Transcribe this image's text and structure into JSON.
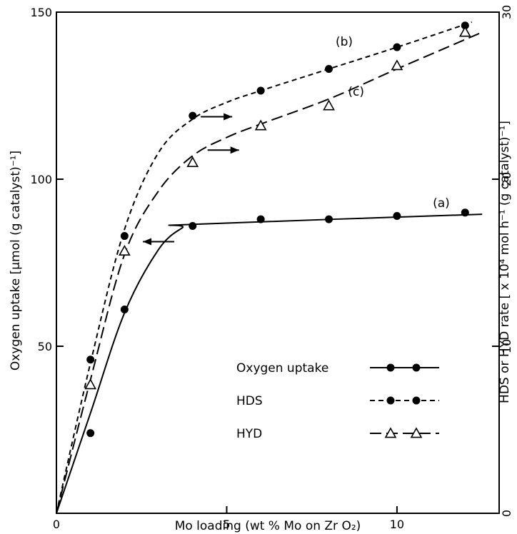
{
  "chart_data": {
    "type": "line",
    "title": "",
    "xlabel": "Mo loading (wt % Mo on Zr O₂)",
    "ylabel_left": "Oxygen uptake [µmol (g catalyst)⁻¹]",
    "ylabel_right": "HDS or HYD rate [ x 10⁴ mol h⁻¹ (g catalyst)⁻¹]",
    "xlim": [
      0,
      13
    ],
    "ylim_left": [
      0,
      150
    ],
    "ylim_right": [
      0,
      30
    ],
    "x_ticks": [
      {
        "value": 0,
        "label": "0"
      },
      {
        "value": 5,
        "label": "5"
      },
      {
        "value": 10,
        "label": "10"
      }
    ],
    "y_left_ticks": [
      {
        "value": 0,
        "label": ""
      },
      {
        "value": 50,
        "label": "50"
      },
      {
        "value": 100,
        "label": "100"
      },
      {
        "value": 150,
        "label": "150"
      }
    ],
    "y_right_ticks": [
      {
        "value": 0,
        "label": "0"
      },
      {
        "value": 10,
        "label": "10"
      },
      {
        "value": 20,
        "label": "20"
      },
      {
        "value": 30,
        "label": "30"
      }
    ],
    "grid": false,
    "series": [
      {
        "name": "Oxygen uptake",
        "label": "(a)",
        "axis": "left",
        "line_style": "solid",
        "marker": "filled-circle",
        "x": [
          1,
          2,
          4,
          6,
          8,
          10,
          12
        ],
        "y": [
          24,
          61,
          86,
          88,
          88,
          89,
          90
        ],
        "curve_x": [
          0,
          1,
          2,
          3,
          3.7,
          4,
          12.5
        ],
        "curve_y": [
          0,
          30,
          60,
          79,
          85.5,
          86.5,
          89.5
        ]
      },
      {
        "name": "HDS",
        "label": "(b)",
        "axis": "right",
        "line_style": "short-dash",
        "marker": "filled-circle",
        "x": [
          1,
          2,
          4,
          6,
          8,
          10,
          12
        ],
        "y": [
          9.2,
          16.6,
          23.8,
          25.3,
          26.6,
          27.9,
          29.2
        ],
        "curve_x": [
          0,
          1,
          2,
          3,
          4,
          5,
          6,
          8,
          10,
          12.2
        ],
        "curve_y": [
          0,
          9.0,
          17.0,
          21.6,
          23.6,
          24.6,
          25.3,
          26.6,
          27.9,
          29.4
        ]
      },
      {
        "name": "HYD",
        "label": "(c)",
        "axis": "right",
        "line_style": "long-dash",
        "marker": "open-triangle",
        "x": [
          1,
          2,
          4,
          6,
          8,
          10,
          12
        ],
        "y": [
          7.7,
          15.7,
          21.0,
          23.2,
          24.4,
          26.8,
          28.8
        ],
        "curve_x": [
          0,
          1,
          2,
          3,
          4,
          5,
          6,
          8,
          10,
          12.5
        ],
        "curve_y": [
          0,
          8.0,
          15.5,
          19.3,
          21.4,
          22.5,
          23.3,
          24.8,
          26.6,
          28.8
        ]
      }
    ],
    "axis_arrows": [
      {
        "series": "HDS",
        "points_to": "right",
        "x": 4.7,
        "y_left": 118.7
      },
      {
        "series": "HYD",
        "points_to": "right",
        "x": 4.9,
        "y_left": 108.7
      },
      {
        "series": "Oxygen uptake",
        "points_to": "left",
        "x": 3.0,
        "y_left": 81.3
      }
    ],
    "legend": {
      "position": "lower-right",
      "entries": [
        {
          "label": "Oxygen uptake",
          "line_style": "solid",
          "marker": "filled-circle"
        },
        {
          "label": "HDS",
          "line_style": "short-dash",
          "marker": "filled-circle"
        },
        {
          "label": "HYD",
          "line_style": "long-dash",
          "marker": "open-triangle"
        }
      ]
    }
  }
}
